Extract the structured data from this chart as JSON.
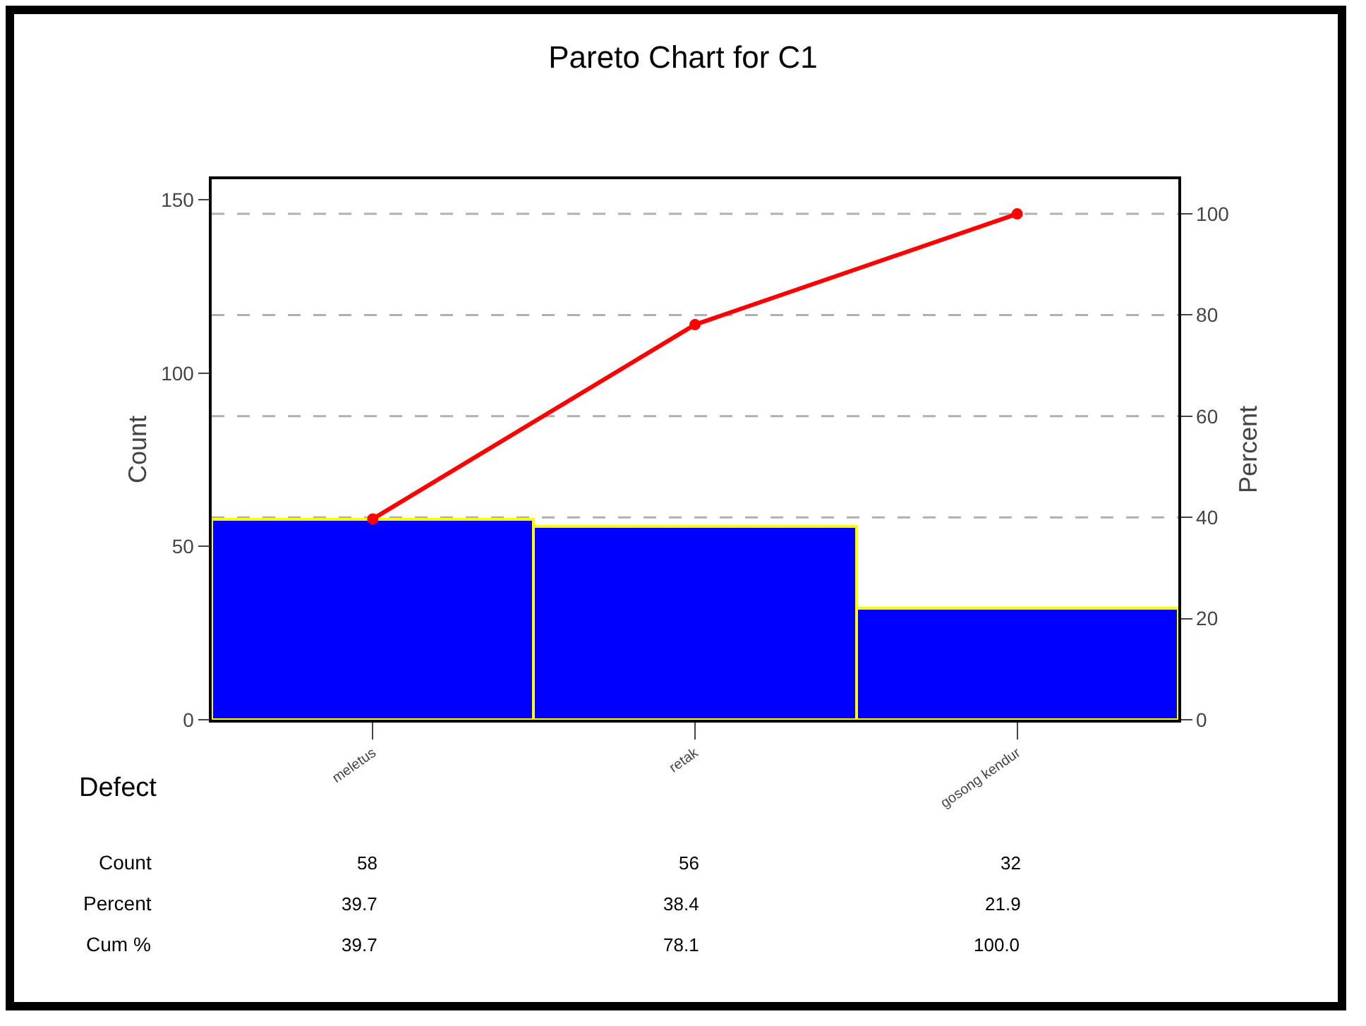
{
  "chart_data": {
    "type": "bar",
    "title": "Pareto Chart for C1",
    "xlabel": "Defect",
    "ylabel": "Count",
    "y2label": "Percent",
    "categories": [
      "meletus",
      "retak",
      "gosong kendur"
    ],
    "series": [
      {
        "color": "#0000ff",
        "values": [
          58,
          56,
          32
        ],
        "value_labels": [
          "58",
          "56",
          "32"
        ]
      },
      {
        "type": "line",
        "axis": "y2",
        "color": "#ff0000",
        "values": [
          39.7,
          78.1,
          100.0
        ],
        "value_labels": [
          "39.7",
          "78.1",
          "100.0"
        ]
      }
    ],
    "annotations": [
      "Count",
      "Percent",
      "Cum %",
      "39.7",
      "38.4",
      "21.9"
    ],
    "ylim": [
      0,
      156
    ],
    "yticks": [
      0,
      50,
      100,
      150
    ],
    "y2lim": [
      0,
      106.85
    ],
    "y2ticks": [
      0,
      20,
      40,
      60,
      80,
      100
    ],
    "grid": true,
    "marker": "circle",
    "line_style": "solid"
  }
}
